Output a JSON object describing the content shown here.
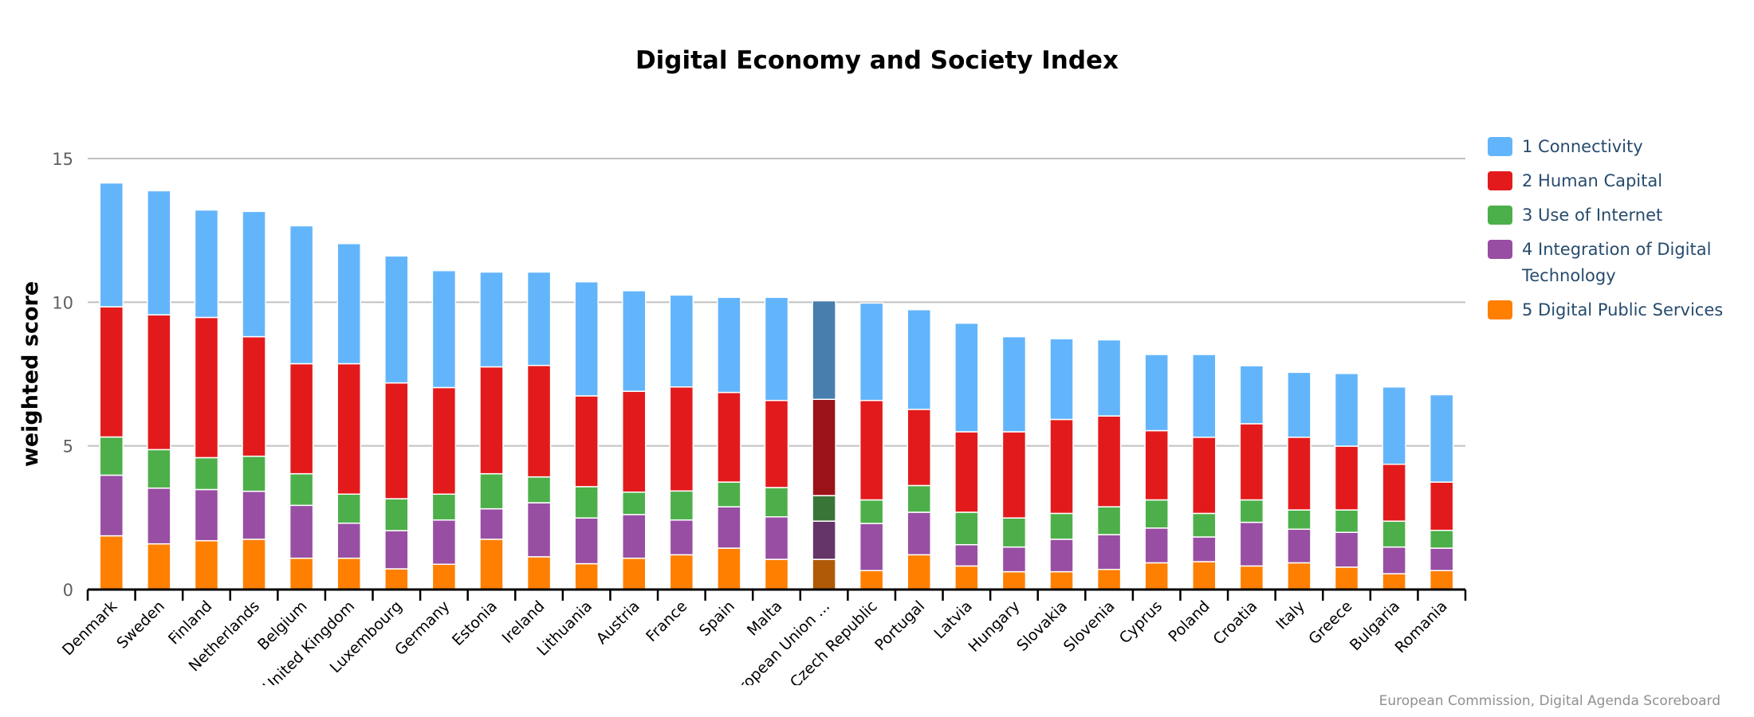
{
  "chart_data": {
    "type": "bar",
    "stacked": true,
    "title": "Digital Economy and Society Index",
    "xlabel": "",
    "ylabel": "weighted score",
    "ylim": [
      0,
      15
    ],
    "yticks": [
      "0",
      "5",
      "10",
      "15"
    ],
    "grid": true,
    "legend_position": "right",
    "categories": [
      "Denmark",
      "Sweden",
      "Finland",
      "Netherlands",
      "Belgium",
      "United Kingdom",
      "Luxembourg",
      "Germany",
      "Estonia",
      "Ireland",
      "Lithuania",
      "Austria",
      "France",
      "Spain",
      "Malta",
      "European Union ...",
      "Czech Republic",
      "Portugal",
      "Latvia",
      "Hungary",
      "Slovakia",
      "Slovenia",
      "Cyprus",
      "Poland",
      "Croatia",
      "Italy",
      "Greece",
      "Bulgaria",
      "Romania"
    ],
    "highlighted_category": "European Union ...",
    "series": [
      {
        "name": "5 Digital Public Services",
        "color": "#FF7F00",
        "highlight_color": "#B05A08",
        "values": [
          1.87,
          1.59,
          1.7,
          1.75,
          1.09,
          1.09,
          0.72,
          0.88,
          1.75,
          1.14,
          0.9,
          1.09,
          1.21,
          1.44,
          1.05,
          1.05,
          0.66,
          1.21,
          0.82,
          0.62,
          0.62,
          0.7,
          0.93,
          0.97,
          0.82,
          0.93,
          0.78,
          0.55,
          0.66
        ]
      },
      {
        "name": "4 Integration of Digital Technology",
        "color": "#984EA3",
        "highlight_color": "#653469",
        "values": [
          2.11,
          1.94,
          1.78,
          1.67,
          1.84,
          1.22,
          1.33,
          1.54,
          1.06,
          1.88,
          1.59,
          1.52,
          1.21,
          1.44,
          1.48,
          1.33,
          1.64,
          1.48,
          0.74,
          0.86,
          1.13,
          1.21,
          1.21,
          0.86,
          1.52,
          1.17,
          1.21,
          0.93,
          0.78
        ]
      },
      {
        "name": "3 Use of Internet",
        "color": "#4DAF4A",
        "highlight_color": "#3A7538",
        "values": [
          1.33,
          1.34,
          1.11,
          1.22,
          1.1,
          1.01,
          1.11,
          0.9,
          1.22,
          0.9,
          1.09,
          0.78,
          1.01,
          0.86,
          1.02,
          0.89,
          0.82,
          0.93,
          1.13,
          1.01,
          0.9,
          0.97,
          0.98,
          0.82,
          0.78,
          0.67,
          0.78,
          0.9,
          0.62
        ]
      },
      {
        "name": "2 Human Capital",
        "color": "#E31A1C",
        "highlight_color": "#9B1318",
        "values": [
          4.53,
          4.69,
          4.88,
          4.16,
          3.83,
          4.54,
          4.03,
          3.71,
          3.72,
          3.88,
          3.16,
          3.51,
          3.62,
          3.12,
          3.03,
          3.35,
          3.46,
          2.65,
          2.8,
          3.0,
          3.27,
          3.16,
          2.41,
          2.65,
          2.65,
          2.53,
          2.22,
          1.98,
          1.68
        ]
      },
      {
        "name": "1 Connectivity",
        "color": "#63B5FB",
        "highlight_color": "#467EAE",
        "values": [
          4.31,
          4.32,
          3.74,
          4.36,
          4.8,
          4.18,
          4.42,
          4.07,
          3.3,
          3.25,
          3.97,
          3.5,
          3.2,
          3.31,
          3.59,
          3.43,
          3.39,
          3.47,
          3.78,
          3.31,
          2.81,
          2.65,
          2.65,
          2.88,
          2.02,
          2.26,
          2.53,
          2.69,
          3.04
        ]
      }
    ],
    "legend": [
      "1 Connectivity",
      "2 Human Capital",
      "3 Use of Internet",
      "4 Integration of Digital Technology",
      "5 Digital Public Services"
    ],
    "legend_colors": [
      "#63B5FB",
      "#E31A1C",
      "#4DAF4A",
      "#984EA3",
      "#FF7F00"
    ]
  },
  "credits": "European Commission, Digital Agenda Scoreboard"
}
